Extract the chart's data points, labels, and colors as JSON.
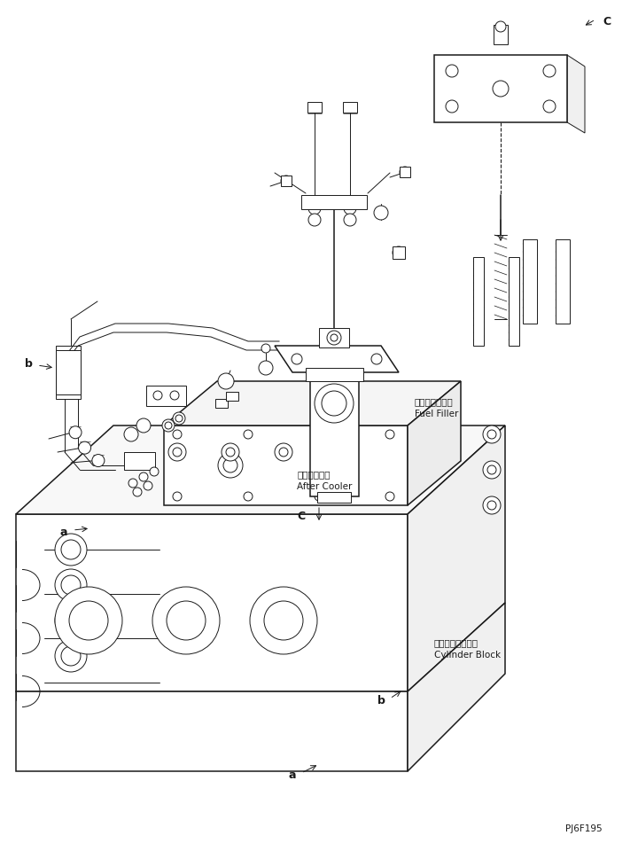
{
  "background_color": "#ffffff",
  "line_color": "#1a1a1a",
  "figure_id": "PJ6F195",
  "labels": {
    "fuel_filler_jp": "フェルフィルタ",
    "fuel_filler_en": "Fuel Filler",
    "after_cooler_jp": "アフタクーラ",
    "after_cooler_en": "After Cooler",
    "cylinder_block_jp": "シリンダブロック",
    "cylinder_block_en": "Cylinder Block",
    "label_a": "a",
    "label_b": "b",
    "label_c": "C"
  }
}
